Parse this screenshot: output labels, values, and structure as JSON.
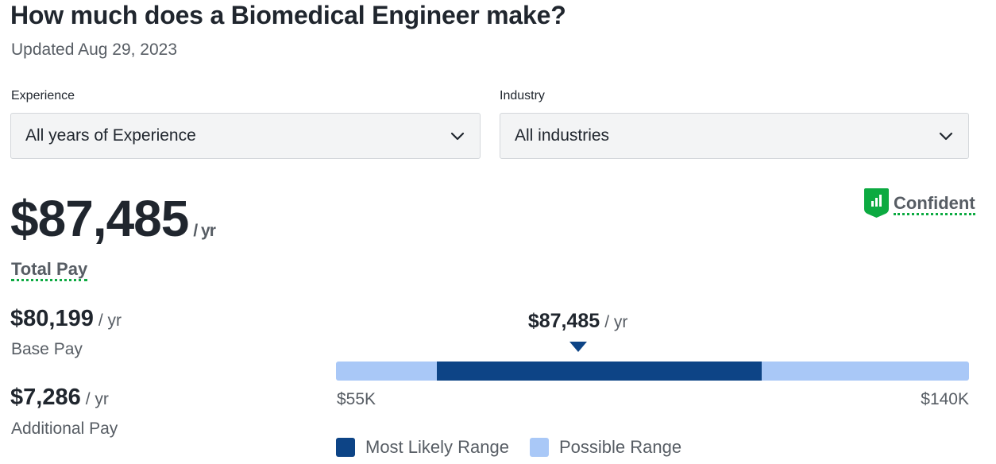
{
  "header": {
    "title": "How much does a Biomedical Engineer make?",
    "updated": "Updated Aug 29, 2023"
  },
  "filters": {
    "experience": {
      "label": "Experience",
      "value": "All years of Experience"
    },
    "industry": {
      "label": "Industry",
      "value": "All industries"
    }
  },
  "pay": {
    "total": "$87,485",
    "total_unit": "/ yr",
    "total_label": "Total Pay",
    "confidence": "Confident",
    "base": {
      "value": "$80,199",
      "unit": "/ yr",
      "label": "Base Pay"
    },
    "additional": {
      "value": "$7,286",
      "unit": "/ yr",
      "label": "Additional Pay"
    }
  },
  "range": {
    "marker_value": "$87,485",
    "marker_unit": "/ yr",
    "min_label": "$55K",
    "max_label": "$140K",
    "min": 55000,
    "max": 140000,
    "likely_low": 68500,
    "likely_high": 112200,
    "marker": 87485,
    "legend": {
      "likely": "Most Likely Range",
      "possible": "Possible Range"
    }
  },
  "colors": {
    "likely": "#0d4486",
    "possible": "#a9c8f7",
    "confidence_green": "#0caa41"
  },
  "icons": {
    "select": "chevron-down-icon",
    "confidence": "signal-shield-icon"
  }
}
